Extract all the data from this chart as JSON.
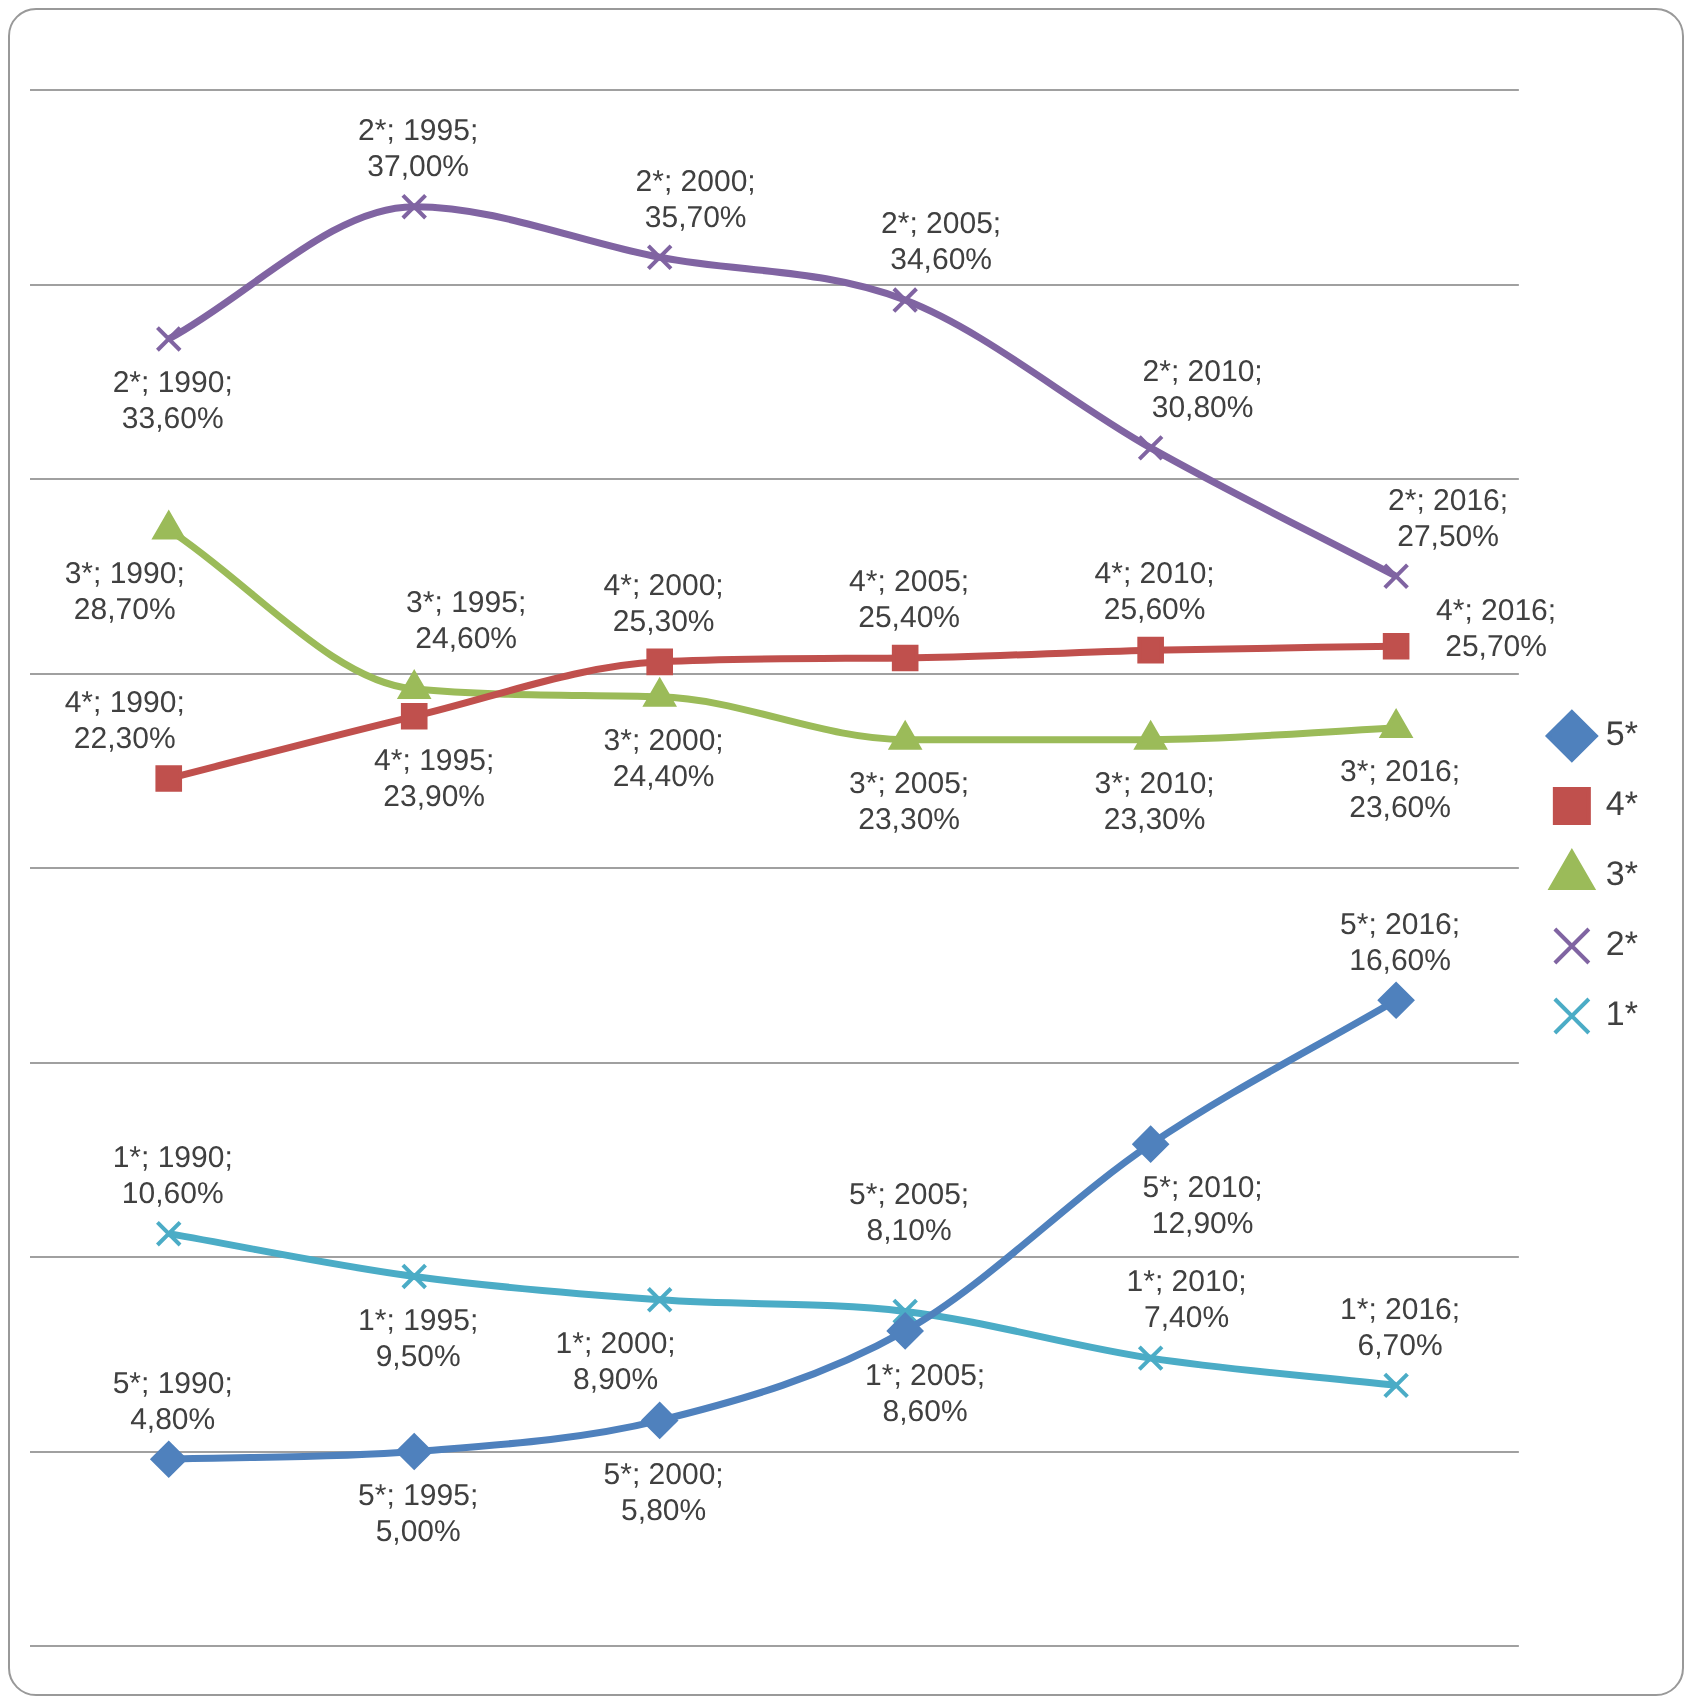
{
  "chart_data": {
    "type": "line",
    "categories": [
      null,
      null,
      null,
      null,
      null,
      null
    ],
    "ylim": [
      0,
      40
    ],
    "yticks": [
      {
        "value": 0,
        "label": null
      },
      {
        "value": 5,
        "label": null
      },
      {
        "value": 10,
        "label": null
      },
      {
        "value": 15,
        "label": null
      },
      {
        "value": 20,
        "label": null
      },
      {
        "value": 25,
        "label": null
      },
      {
        "value": 30,
        "label": null
      },
      {
        "value": 35,
        "label": null
      },
      {
        "value": 40,
        "label": null
      }
    ],
    "tick_labels": false,
    "grid": "y",
    "legend": "right",
    "line_style": "solid",
    "series": [
      {
        "name": "5*",
        "color": "#4f81bd",
        "marker": "diamond",
        "values": [
          4.8,
          5.0,
          5.8,
          8.1,
          12.9,
          16.6
        ],
        "value_labels": [
          "5*; 1990; 4,80%",
          "5*; 1995; 5,00%",
          "5*; 2000; 5,80%",
          "5*; 2005; 8,10%",
          "5*; 2010; 12,90%",
          "5*; 2016; 16,60%"
        ]
      },
      {
        "name": "4*",
        "color": "#c0504d",
        "marker": "square",
        "values": [
          22.3,
          23.9,
          25.3,
          25.4,
          25.6,
          25.7
        ],
        "value_labels": [
          "4*; 1990; 22,30%",
          "4*; 1995; 23,90%",
          "4*; 2000; 25,30%",
          "4*; 2005; 25,40%",
          "4*; 2010; 25,60%",
          "4*; 2016; 25,70%"
        ]
      },
      {
        "name": "3*",
        "color": "#9bbb59",
        "marker": "triangle",
        "values": [
          28.7,
          24.6,
          24.4,
          23.3,
          23.3,
          23.6
        ],
        "value_labels": [
          "3*; 1990; 28,70%",
          "3*; 1995; 24,60%",
          "3*; 2000; 24,40%",
          "3*; 2005; 23,30%",
          "3*; 2010; 23,30%",
          "3*; 2016; 23,60%"
        ]
      },
      {
        "name": "2*",
        "color": "#8064a2",
        "marker": "cross",
        "values": [
          33.6,
          37.0,
          35.7,
          34.6,
          30.8,
          27.5
        ],
        "value_labels": [
          "2*; 1990; 33,60%",
          "2*; 1995; 37,00%",
          "2*; 2000; 35,70%",
          "2*; 2005; 34,60%",
          "2*; 2010; 30,80%",
          "2*; 2016; 27,50%"
        ]
      },
      {
        "name": "1*",
        "color": "#4bacc6",
        "marker": "cross",
        "values": [
          10.6,
          9.5,
          8.9,
          8.6,
          7.4,
          6.7
        ],
        "value_labels": [
          "1*; 1990; 10,60%",
          "1*; 1995; 9,50%",
          "1*; 2000; 8,90%",
          "1*; 2005; 8,60%",
          "1*; 2010; 7,40%",
          "1*; 2016; 6,70%"
        ]
      }
    ]
  }
}
